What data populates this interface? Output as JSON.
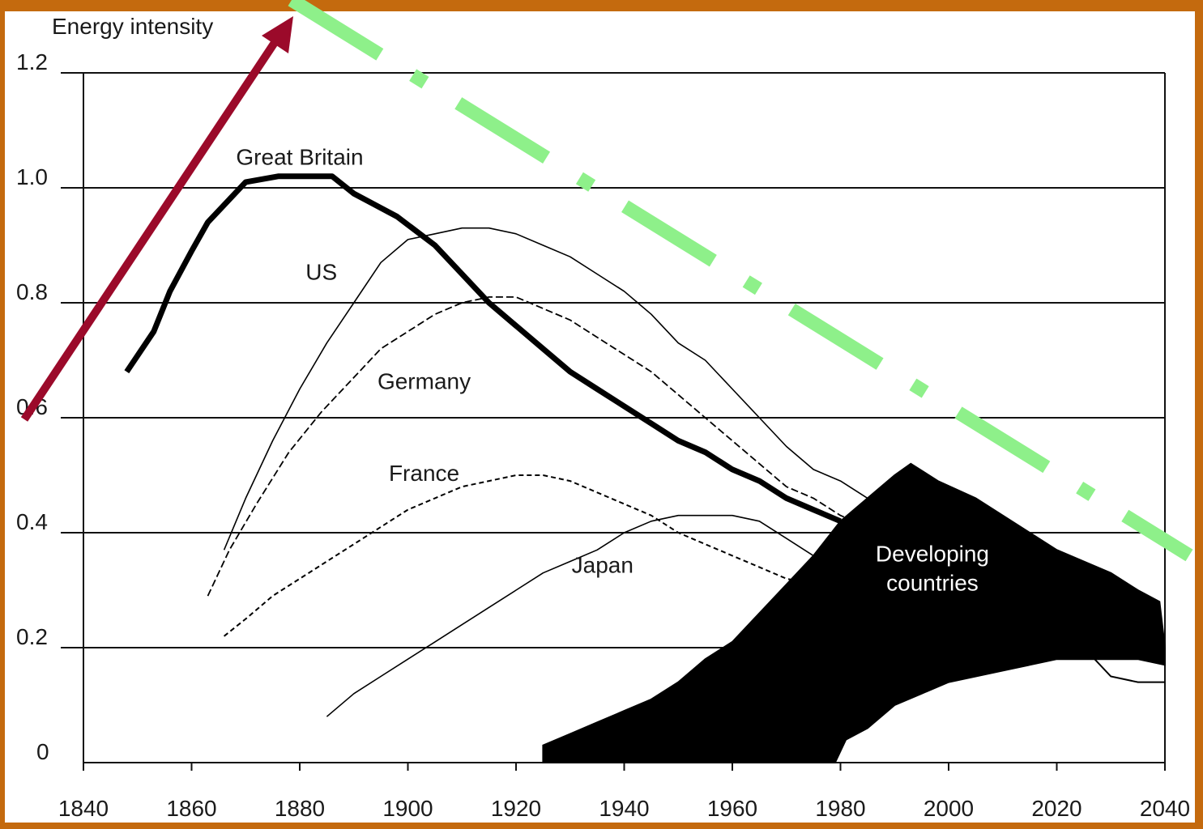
{
  "chart_data": {
    "type": "line",
    "ylabel": "Energy intensity",
    "xlabel": "",
    "xlim": [
      1840,
      2040
    ],
    "ylim": [
      0,
      1.2
    ],
    "x_ticks": [
      "1840",
      "1860",
      "1880",
      "1900",
      "1920",
      "1940",
      "1960",
      "1980",
      "2000",
      "2020",
      "2040"
    ],
    "y_ticks": [
      "0",
      "0.2",
      "0.4",
      "0.6",
      "0.8",
      "1.0",
      "1.2"
    ],
    "grid": "horizontal",
    "series": [
      {
        "name": "Great Britain",
        "style": "thick",
        "label_at": [
          1880,
          1.04
        ],
        "points": [
          [
            1848,
            0.68
          ],
          [
            1853,
            0.75
          ],
          [
            1856,
            0.82
          ],
          [
            1860,
            0.89
          ],
          [
            1863,
            0.94
          ],
          [
            1870,
            1.01
          ],
          [
            1876,
            1.02
          ],
          [
            1882,
            1.02
          ],
          [
            1886,
            1.02
          ],
          [
            1890,
            0.99
          ],
          [
            1898,
            0.95
          ],
          [
            1905,
            0.9
          ],
          [
            1910,
            0.85
          ],
          [
            1915,
            0.8
          ],
          [
            1920,
            0.76
          ],
          [
            1925,
            0.72
          ],
          [
            1930,
            0.68
          ],
          [
            1935,
            0.65
          ],
          [
            1940,
            0.62
          ],
          [
            1945,
            0.59
          ],
          [
            1950,
            0.56
          ],
          [
            1955,
            0.54
          ],
          [
            1960,
            0.51
          ],
          [
            1965,
            0.49
          ],
          [
            1970,
            0.46
          ],
          [
            1975,
            0.44
          ],
          [
            1980,
            0.42
          ]
        ]
      },
      {
        "name": "US",
        "style": "thin",
        "label_at": [
          1884,
          0.84
        ],
        "points": [
          [
            1866,
            0.37
          ],
          [
            1870,
            0.46
          ],
          [
            1875,
            0.56
          ],
          [
            1880,
            0.65
          ],
          [
            1885,
            0.73
          ],
          [
            1890,
            0.8
          ],
          [
            1895,
            0.87
          ],
          [
            1900,
            0.91
          ],
          [
            1905,
            0.92
          ],
          [
            1910,
            0.93
          ],
          [
            1915,
            0.93
          ],
          [
            1920,
            0.92
          ],
          [
            1925,
            0.9
          ],
          [
            1930,
            0.88
          ],
          [
            1935,
            0.85
          ],
          [
            1940,
            0.82
          ],
          [
            1945,
            0.78
          ],
          [
            1950,
            0.73
          ],
          [
            1955,
            0.7
          ],
          [
            1960,
            0.65
          ],
          [
            1965,
            0.6
          ],
          [
            1970,
            0.55
          ],
          [
            1975,
            0.51
          ],
          [
            1980,
            0.49
          ],
          [
            1985,
            0.46
          ]
        ]
      },
      {
        "name": "Germany",
        "style": "dashed",
        "label_at": [
          1903,
          0.65
        ],
        "points": [
          [
            1863,
            0.29
          ],
          [
            1867,
            0.37
          ],
          [
            1872,
            0.45
          ],
          [
            1878,
            0.54
          ],
          [
            1884,
            0.61
          ],
          [
            1890,
            0.67
          ],
          [
            1895,
            0.72
          ],
          [
            1900,
            0.75
          ],
          [
            1905,
            0.78
          ],
          [
            1910,
            0.8
          ],
          [
            1915,
            0.81
          ],
          [
            1920,
            0.81
          ],
          [
            1925,
            0.79
          ],
          [
            1930,
            0.77
          ],
          [
            1935,
            0.74
          ],
          [
            1940,
            0.71
          ],
          [
            1945,
            0.68
          ],
          [
            1950,
            0.64
          ],
          [
            1955,
            0.6
          ],
          [
            1960,
            0.56
          ],
          [
            1965,
            0.52
          ],
          [
            1970,
            0.48
          ],
          [
            1975,
            0.46
          ],
          [
            1980,
            0.43
          ],
          [
            1985,
            0.41
          ]
        ]
      },
      {
        "name": "France",
        "style": "dashed-fine",
        "label_at": [
          1903,
          0.49
        ],
        "points": [
          [
            1866,
            0.22
          ],
          [
            1870,
            0.25
          ],
          [
            1875,
            0.29
          ],
          [
            1880,
            0.32
          ],
          [
            1885,
            0.35
          ],
          [
            1890,
            0.38
          ],
          [
            1895,
            0.41
          ],
          [
            1900,
            0.44
          ],
          [
            1905,
            0.46
          ],
          [
            1910,
            0.48
          ],
          [
            1915,
            0.49
          ],
          [
            1920,
            0.5
          ],
          [
            1925,
            0.5
          ],
          [
            1930,
            0.49
          ],
          [
            1935,
            0.47
          ],
          [
            1940,
            0.45
          ],
          [
            1945,
            0.43
          ],
          [
            1950,
            0.4
          ],
          [
            1955,
            0.38
          ],
          [
            1960,
            0.36
          ],
          [
            1965,
            0.34
          ],
          [
            1970,
            0.32
          ],
          [
            1975,
            0.31
          ]
        ]
      },
      {
        "name": "Japan",
        "style": "thin",
        "label_at": [
          1936,
          0.33
        ],
        "points": [
          [
            1885,
            0.08
          ],
          [
            1890,
            0.12
          ],
          [
            1895,
            0.15
          ],
          [
            1900,
            0.18
          ],
          [
            1905,
            0.21
          ],
          [
            1910,
            0.24
          ],
          [
            1915,
            0.27
          ],
          [
            1920,
            0.3
          ],
          [
            1925,
            0.33
          ],
          [
            1930,
            0.35
          ],
          [
            1935,
            0.37
          ],
          [
            1940,
            0.4
          ],
          [
            1945,
            0.42
          ],
          [
            1950,
            0.43
          ],
          [
            1955,
            0.43
          ],
          [
            1960,
            0.43
          ],
          [
            1965,
            0.42
          ],
          [
            1970,
            0.39
          ],
          [
            1975,
            0.36
          ],
          [
            1980,
            0.33
          ]
        ]
      }
    ],
    "band": {
      "name": "Developing countries",
      "label_lines": [
        "Developing",
        "countries"
      ],
      "upper": [
        [
          1925,
          0.03
        ],
        [
          1930,
          0.05
        ],
        [
          1935,
          0.07
        ],
        [
          1940,
          0.09
        ],
        [
          1945,
          0.11
        ],
        [
          1950,
          0.14
        ],
        [
          1955,
          0.18
        ],
        [
          1960,
          0.21
        ],
        [
          1965,
          0.26
        ],
        [
          1970,
          0.31
        ],
        [
          1975,
          0.36
        ],
        [
          1980,
          0.42
        ],
        [
          1985,
          0.46
        ],
        [
          1990,
          0.5
        ],
        [
          1993,
          0.52
        ],
        [
          1998,
          0.49
        ],
        [
          2005,
          0.46
        ],
        [
          2010,
          0.43
        ],
        [
          2015,
          0.4
        ],
        [
          2020,
          0.37
        ],
        [
          2025,
          0.35
        ],
        [
          2030,
          0.33
        ],
        [
          2035,
          0.3
        ],
        [
          2039,
          0.28
        ],
        [
          2040,
          0.2
        ]
      ],
      "lower": [
        [
          2040,
          0.17
        ],
        [
          2035,
          0.18
        ],
        [
          2030,
          0.18
        ],
        [
          2025,
          0.18
        ],
        [
          2020,
          0.18
        ],
        [
          2015,
          0.17
        ],
        [
          2010,
          0.16
        ],
        [
          2005,
          0.15
        ],
        [
          2000,
          0.14
        ],
        [
          1995,
          0.12
        ],
        [
          1990,
          0.1
        ],
        [
          1985,
          0.06
        ],
        [
          1981,
          0.04
        ],
        [
          1979,
          0.0
        ],
        [
          1925,
          0.0
        ]
      ]
    },
    "tail_line": [
      [
        2027,
        0.18
      ],
      [
        2030,
        0.15
      ],
      [
        2035,
        0.14
      ],
      [
        2040,
        0.14
      ]
    ]
  },
  "overlay": {
    "arrow_color": "#9b0a2a",
    "trend_color": "#8ef08a",
    "frame_color": "#c46a0e"
  }
}
